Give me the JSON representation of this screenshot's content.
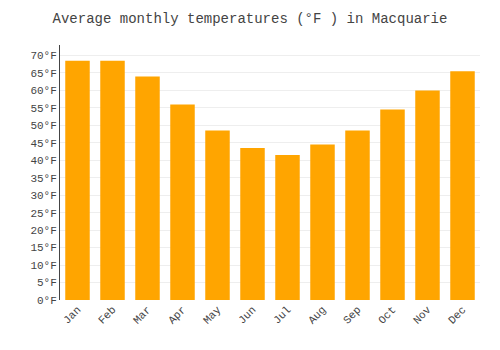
{
  "chart_data": {
    "type": "bar",
    "title": "Average monthly temperatures (°F ) in Macquarie",
    "categories": [
      "Jan",
      "Feb",
      "Mar",
      "Apr",
      "May",
      "Jun",
      "Jul",
      "Aug",
      "Sep",
      "Oct",
      "Nov",
      "Dec"
    ],
    "values": [
      68.5,
      68.5,
      64.0,
      56.0,
      48.5,
      43.5,
      41.5,
      44.5,
      48.5,
      54.5,
      60.0,
      65.5
    ],
    "color": "#FFA500",
    "ylim": [
      0,
      73
    ],
    "yticks": [
      {
        "value": 0,
        "label": "0°F"
      },
      {
        "value": 5,
        "label": "5°F"
      },
      {
        "value": 10,
        "label": "10°F"
      },
      {
        "value": 15,
        "label": "15°F"
      },
      {
        "value": 20,
        "label": "20°F"
      },
      {
        "value": 25,
        "label": "25°F"
      },
      {
        "value": 30,
        "label": "30°F"
      },
      {
        "value": 35,
        "label": "35°F"
      },
      {
        "value": 40,
        "label": "40°F"
      },
      {
        "value": 45,
        "label": "45°F"
      },
      {
        "value": 50,
        "label": "50°F"
      },
      {
        "value": 55,
        "label": "55°F"
      },
      {
        "value": 60,
        "label": "60°F"
      },
      {
        "value": 65,
        "label": "65°F"
      },
      {
        "value": 70,
        "label": "70°F"
      }
    ],
    "grid": true
  }
}
